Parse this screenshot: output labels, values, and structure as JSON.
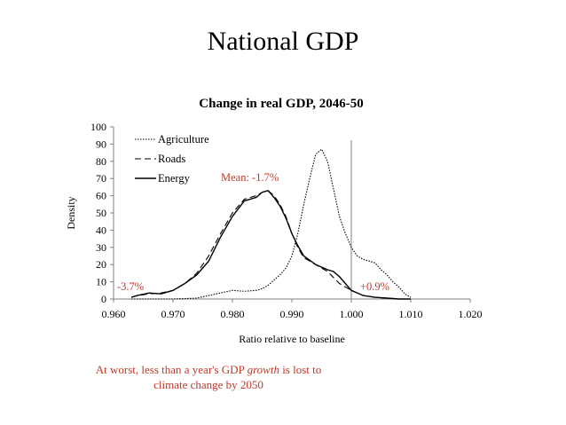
{
  "slide": {
    "title": "National GDP",
    "footnote_before": "At worst, less than a year's GDP ",
    "footnote_emph": "growth",
    "footnote_after": " is lost to climate change by 2050"
  },
  "chart_data": {
    "type": "line",
    "title": "Change in real GDP, 2046-50",
    "xlabel": "Ratio relative to baseline",
    "ylabel": "Density",
    "xlim": [
      0.96,
      1.02
    ],
    "ylim": [
      0,
      100
    ],
    "xticks": [
      "0.960",
      "0.970",
      "0.980",
      "0.990",
      "1.000",
      "1.010",
      "1.020"
    ],
    "yticks": [
      "0",
      "10",
      "20",
      "30",
      "40",
      "50",
      "60",
      "70",
      "80",
      "90",
      "100"
    ],
    "reference_line_x": 1.0,
    "legend_position": "top-left",
    "series": [
      {
        "name": "Agriculture",
        "dash": "dotted",
        "x": [
          0.963,
          0.97,
          0.974,
          0.976,
          0.978,
          0.98,
          0.982,
          0.984,
          0.985,
          0.986,
          0.987,
          0.988,
          0.989,
          0.99,
          0.991,
          0.992,
          0.993,
          0.994,
          0.995,
          0.996,
          0.997,
          0.998,
          0.999,
          1.0,
          1.001,
          1.002,
          1.003,
          1.004,
          1.005,
          1.006,
          1.007,
          1.008,
          1.009,
          1.01
        ],
        "y": [
          0,
          0,
          0.5,
          2,
          3.5,
          5,
          4.5,
          5,
          6,
          8,
          11,
          14,
          18,
          25,
          38,
          55,
          70,
          84,
          87,
          80,
          64,
          48,
          38,
          30,
          25,
          23,
          22,
          21,
          17,
          14,
          10,
          7,
          3,
          1
        ]
      },
      {
        "name": "Roads",
        "dash": "dashed",
        "x": [
          0.963,
          0.964,
          0.966,
          0.968,
          0.97,
          0.972,
          0.974,
          0.976,
          0.978,
          0.98,
          0.982,
          0.984,
          0.985,
          0.986,
          0.987,
          0.988,
          0.989,
          0.99,
          0.991,
          0.992,
          0.994,
          0.996,
          0.998,
          1.0,
          1.002,
          1.004,
          1.006,
          1.008,
          1.01
        ],
        "y": [
          1,
          2,
          3,
          3.5,
          5,
          9,
          15,
          25,
          38,
          50,
          58,
          60,
          62,
          63,
          60,
          55,
          48,
          38,
          30,
          24,
          20,
          16,
          9,
          5,
          2,
          1,
          0.5,
          0,
          0
        ]
      },
      {
        "name": "Energy",
        "dash": "solid",
        "x": [
          0.963,
          0.964,
          0.966,
          0.968,
          0.97,
          0.972,
          0.974,
          0.976,
          0.978,
          0.98,
          0.982,
          0.984,
          0.985,
          0.986,
          0.987,
          0.988,
          0.989,
          0.99,
          0.991,
          0.992,
          0.994,
          0.996,
          0.997,
          0.998,
          1.0,
          1.002,
          1.004,
          1.006,
          1.008,
          1.01
        ],
        "y": [
          1,
          2,
          3.5,
          3,
          5,
          9,
          14,
          22,
          36,
          48,
          57,
          59,
          62,
          63,
          59,
          54,
          47,
          38,
          31,
          25,
          20,
          17,
          16,
          13,
          5,
          2,
          1,
          0.5,
          0,
          0
        ]
      }
    ],
    "annotations": {
      "mean": "Mean: -1.7%",
      "worst": "-3.7%",
      "best": "+0.9%"
    }
  }
}
